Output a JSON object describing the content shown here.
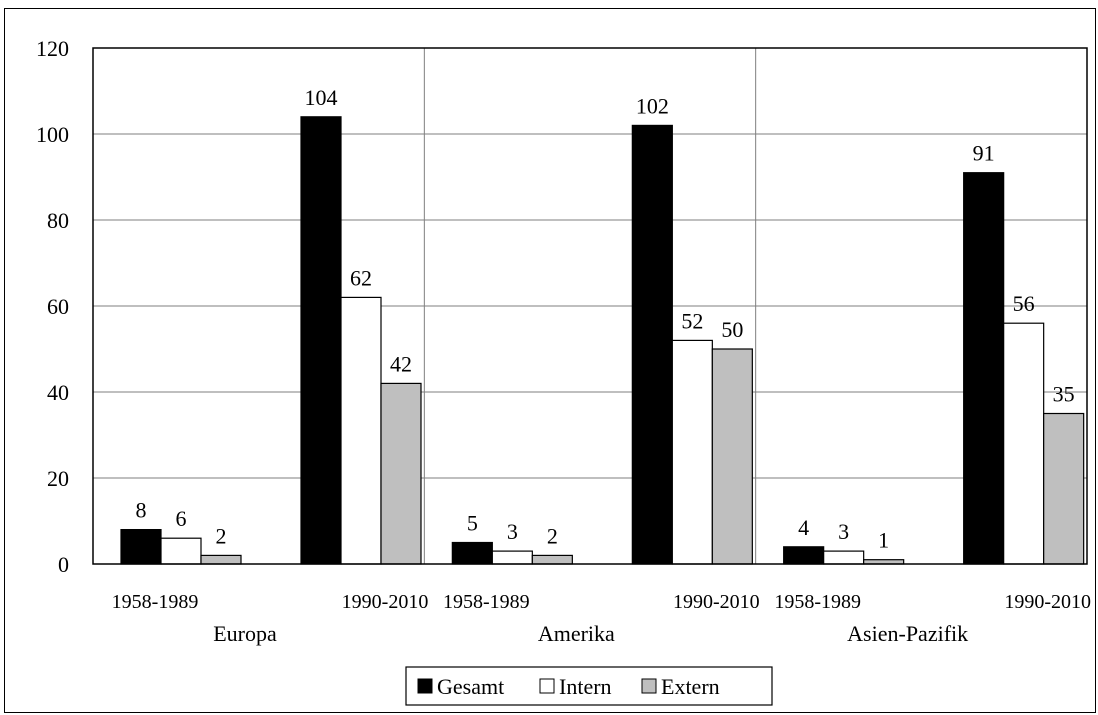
{
  "chart_data": {
    "type": "bar",
    "title": "",
    "xlabel": "",
    "ylabel": "",
    "ylim": [
      0,
      120
    ],
    "yticks": [
      0,
      20,
      40,
      60,
      80,
      100,
      120
    ],
    "grid": true,
    "legend_position": "bottom-center",
    "groups": [
      {
        "name": "Europa",
        "periods": [
          "1958-1989",
          "1990-2010"
        ]
      },
      {
        "name": "Amerika",
        "periods": [
          "1958-1989",
          "1990-2010"
        ]
      },
      {
        "name": "Asien-Pazifik",
        "periods": [
          "1958-1989",
          "1990-2010"
        ]
      }
    ],
    "categories": [
      "Europa 1958-1989",
      "Europa 1990-2010",
      "Amerika 1958-1989",
      "Amerika 1990-2010",
      "Asien-Pazifik 1958-1989",
      "Asien-Pazifik 1990-2010"
    ],
    "series": [
      {
        "name": "Gesamt",
        "color": "#000000",
        "values": [
          8,
          104,
          5,
          102,
          4,
          91
        ]
      },
      {
        "name": "Intern",
        "color": "#ffffff",
        "values": [
          6,
          62,
          3,
          52,
          3,
          56
        ]
      },
      {
        "name": "Extern",
        "color": "#bfbfbf",
        "values": [
          2,
          42,
          2,
          50,
          1,
          35
        ]
      }
    ]
  }
}
